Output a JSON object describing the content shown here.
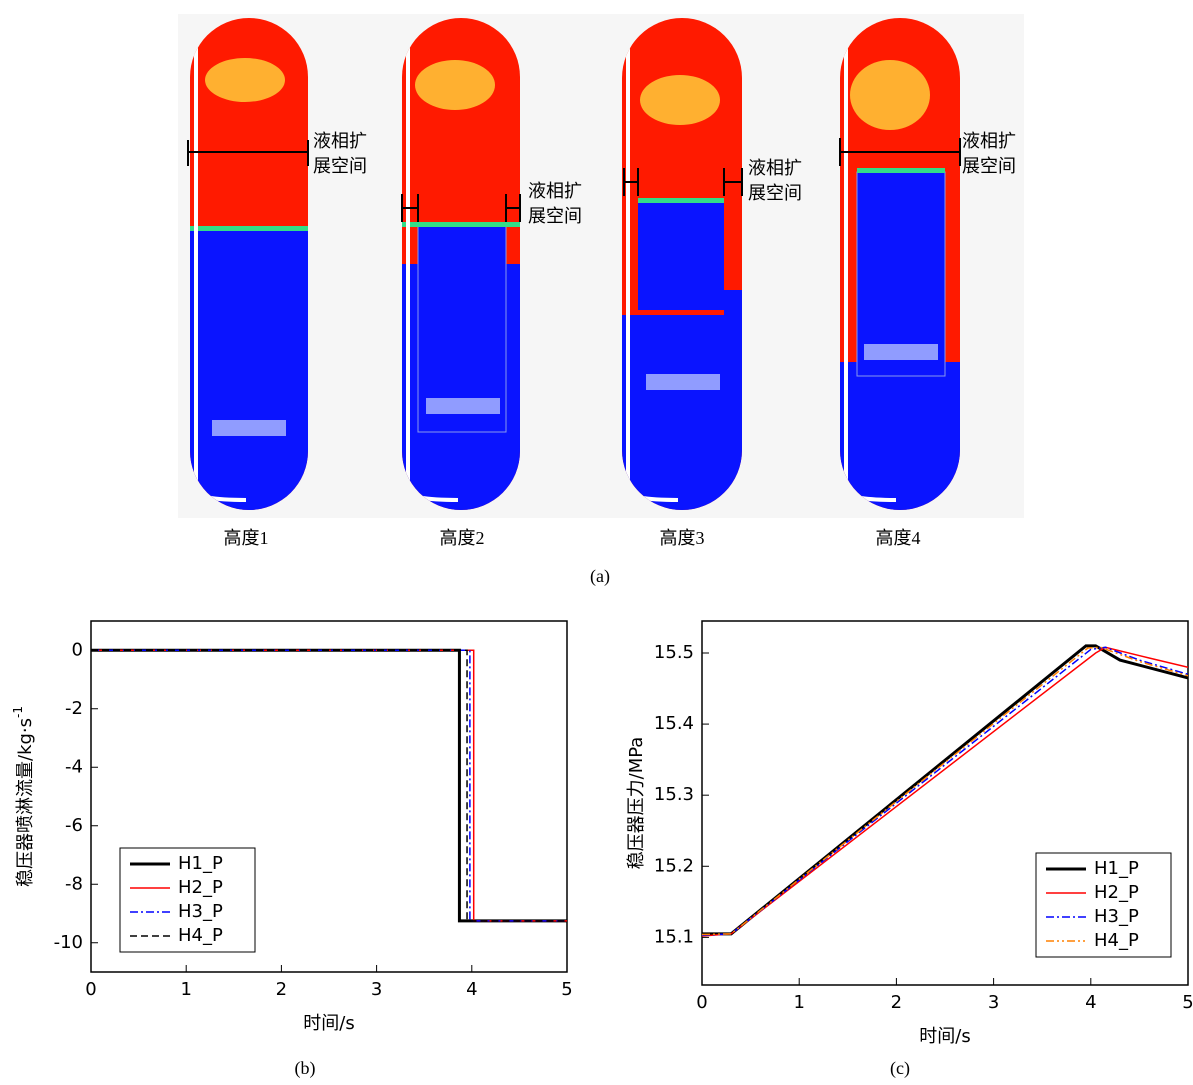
{
  "figure_a": {
    "caption": "(a)",
    "annotation": [
      "液相扩",
      "展空间"
    ],
    "panels": [
      "高度1",
      "高度2",
      "高度3",
      "高度4"
    ]
  },
  "chart_data": [
    {
      "type": "line",
      "caption": "(b)",
      "xlabel": "时间/s",
      "ylabel": "稳压器喷淋流量/kg·s",
      "ylabel_sup": "-1",
      "xlim": [
        0,
        5
      ],
      "ylim": [
        -11,
        1
      ],
      "xticks": [
        0,
        1,
        2,
        3,
        4,
        5
      ],
      "yticks": [
        0,
        -2,
        -4,
        -6,
        -8,
        -10
      ],
      "legend": "lower left",
      "series": [
        {
          "name": "H1_P",
          "color": "#000000",
          "dash": "solid",
          "width": 3,
          "x": [
            0,
            3.87,
            3.87,
            5
          ],
          "values": [
            0,
            0,
            -9.25,
            -9.25
          ]
        },
        {
          "name": "H2_P",
          "color": "#ff0000",
          "dash": "solid",
          "width": 1.5,
          "x": [
            0,
            4.02,
            4.02,
            5
          ],
          "values": [
            0,
            0,
            -9.25,
            -9.25
          ]
        },
        {
          "name": "H3_P",
          "color": "#0000ff",
          "dash": "dashdot",
          "width": 1.5,
          "x": [
            0,
            3.98,
            3.98,
            5
          ],
          "values": [
            0,
            0,
            -9.25,
            -9.25
          ]
        },
        {
          "name": "H4_P",
          "color": "#000000",
          "dash": "dash",
          "width": 1.5,
          "x": [
            0,
            3.95,
            3.95,
            5
          ],
          "values": [
            0,
            0,
            -9.25,
            -9.25
          ]
        }
      ]
    },
    {
      "type": "line",
      "caption": "(c)",
      "xlabel": "时间/s",
      "ylabel": "稳压器压力/MPa",
      "xlim": [
        0,
        5
      ],
      "ylim": [
        15.033,
        15.545
      ],
      "xticks": [
        0,
        1,
        2,
        3,
        4,
        5
      ],
      "yticks": [
        15.1,
        15.2,
        15.3,
        15.4,
        15.5
      ],
      "legend": "lower right",
      "series": [
        {
          "name": "H1_P",
          "color": "#000000",
          "dash": "solid",
          "width": 3,
          "x": [
            0,
            0.3,
            3.95,
            4.05,
            4.3,
            5
          ],
          "values": [
            15.105,
            15.105,
            15.51,
            15.51,
            15.49,
            15.465
          ]
        },
        {
          "name": "H2_P",
          "color": "#ff0000",
          "dash": "solid",
          "width": 1.5,
          "x": [
            0,
            0.3,
            4.05,
            4.15,
            4.6,
            5
          ],
          "values": [
            15.102,
            15.105,
            15.5,
            15.508,
            15.493,
            15.48
          ]
        },
        {
          "name": "H3_P",
          "color": "#0000ff",
          "dash": "dashdot",
          "width": 1.5,
          "x": [
            0,
            0.3,
            4.0,
            4.15,
            4.5,
            5
          ],
          "values": [
            15.103,
            15.105,
            15.505,
            15.508,
            15.49,
            15.47
          ]
        },
        {
          "name": "H4_P",
          "color": "#ff8000",
          "dash": "dashdotdot",
          "width": 1.5,
          "x": [
            0,
            0.3,
            3.97,
            4.1,
            4.5,
            5
          ],
          "values": [
            15.104,
            15.105,
            15.507,
            15.508,
            15.488,
            15.468
          ]
        }
      ]
    }
  ]
}
